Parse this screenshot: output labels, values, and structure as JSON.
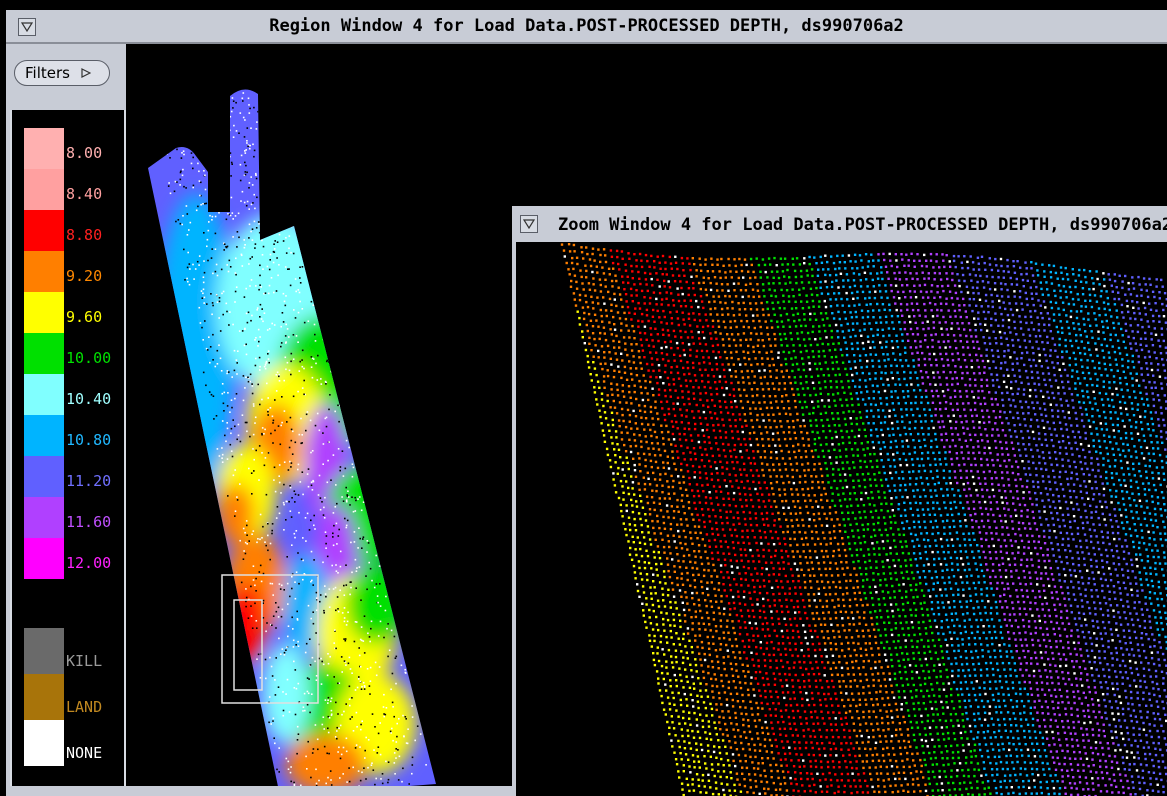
{
  "region_window": {
    "title": "Region Window 4 for Load Data.POST-PROCESSED DEPTH, ds990706a2",
    "menu_icon": "triangle-down-icon"
  },
  "filters_button": {
    "label": "Filters",
    "icon": "triangle-right-icon"
  },
  "legend": {
    "depth_items": [
      {
        "label": "8.00",
        "color": "#ffb0b0",
        "label_color": "#ffb0b0"
      },
      {
        "label": "8.40",
        "color": "#ffa0a0",
        "label_color": "#ffa0a0"
      },
      {
        "label": "8.80",
        "color": "#ff0000",
        "label_color": "#ff2020"
      },
      {
        "label": "9.20",
        "color": "#ff7f00",
        "label_color": "#ff8800"
      },
      {
        "label": "9.60",
        "color": "#ffff00",
        "label_color": "#ffff00"
      },
      {
        "label": "10.00",
        "color": "#00e000",
        "label_color": "#00e000"
      },
      {
        "label": "10.40",
        "color": "#80ffff",
        "label_color": "#a0ffff"
      },
      {
        "label": "10.80",
        "color": "#00b4ff",
        "label_color": "#20b8ff"
      },
      {
        "label": "11.20",
        "color": "#6060ff",
        "label_color": "#7070ff"
      },
      {
        "label": "11.60",
        "color": "#b040ff",
        "label_color": "#c050ff"
      },
      {
        "label": "12.00",
        "color": "#ff00ff",
        "label_color": "#ff20ff"
      }
    ],
    "special_items": [
      {
        "label": "KILL",
        "color": "#6a6a6a",
        "label_color": "#9a9a9a"
      },
      {
        "label": "LAND",
        "color": "#a8740a",
        "label_color": "#c08820"
      },
      {
        "label": "NONE",
        "color": "#ffffff",
        "label_color": "#ffffff"
      }
    ]
  },
  "zoom_window": {
    "title": "Zoom Window 4 for Load Data.POST-PROCESSED DEPTH, ds990706a2",
    "menu_icon": "triangle-down-icon"
  }
}
